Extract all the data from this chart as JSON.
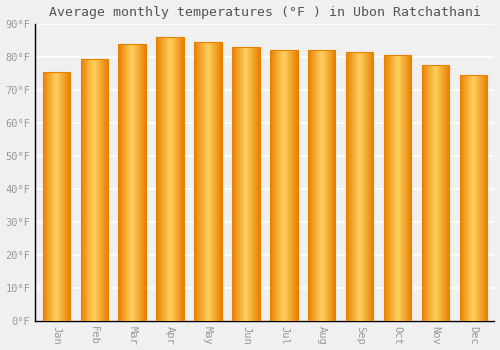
{
  "title": "Average monthly temperatures (°F ) in Ubon Ratchathani",
  "months": [
    "Jan",
    "Feb",
    "Mar",
    "Apr",
    "May",
    "Jun",
    "Jul",
    "Aug",
    "Sep",
    "Oct",
    "Nov",
    "Dec"
  ],
  "values": [
    75.5,
    79.5,
    84.0,
    86.0,
    84.5,
    83.0,
    82.0,
    82.0,
    81.5,
    80.5,
    77.5,
    74.5
  ],
  "bar_color_center": "#FFD060",
  "bar_color_edge": "#E88000",
  "background_color": "#F0F0F0",
  "grid_color": "#FFFFFF",
  "tick_label_color": "#999999",
  "title_color": "#555555",
  "axis_line_color": "#000000",
  "ylim": [
    0,
    90
  ],
  "yticks": [
    0,
    10,
    20,
    30,
    40,
    50,
    60,
    70,
    80,
    90
  ],
  "ytick_labels": [
    "0°F",
    "10°F",
    "20°F",
    "30°F",
    "40°F",
    "50°F",
    "60°F",
    "70°F",
    "80°F",
    "90°F"
  ],
  "title_fontsize": 9.5,
  "tick_fontsize": 7.5,
  "bar_width": 0.72
}
